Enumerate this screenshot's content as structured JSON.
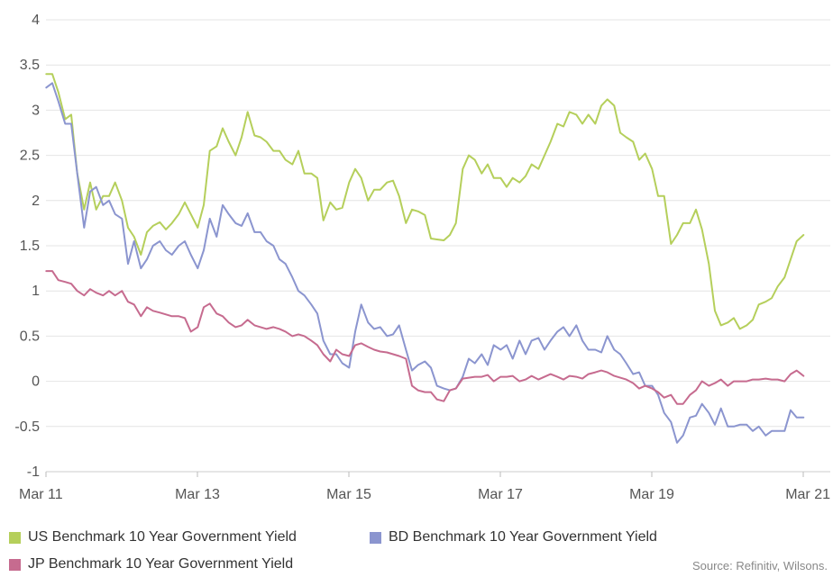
{
  "chart_data": {
    "type": "line",
    "title": "",
    "xlabel": "",
    "ylabel": "",
    "ylim": [
      -1,
      4
    ],
    "yticks": [
      -1,
      -0.5,
      0,
      0.5,
      1,
      1.5,
      2,
      2.5,
      3,
      3.5,
      4
    ],
    "ytick_labels": [
      "-1",
      "-0.5",
      "0",
      "0.5",
      "1",
      "1.5",
      "2",
      "2.5",
      "3",
      "3.5",
      "4"
    ],
    "xlim": [
      2011.167,
      2021.167
    ],
    "xticks": [
      2011.167,
      2013.167,
      2015.167,
      2017.167,
      2019.167,
      2021.167
    ],
    "xtick_labels": [
      "Mar 11",
      "Mar 13",
      "Mar 15",
      "Mar 17",
      "Mar 19",
      "Mar 21"
    ],
    "grid": true,
    "legend_position": "bottom",
    "series": [
      {
        "name": "US Benchmark 10 Year Government Yield",
        "color": "#b5cf5b",
        "x": [
          2011.17,
          2011.25,
          2011.33,
          2011.42,
          2011.5,
          2011.58,
          2011.67,
          2011.75,
          2011.83,
          2011.92,
          2012.0,
          2012.08,
          2012.17,
          2012.25,
          2012.33,
          2012.42,
          2012.5,
          2012.58,
          2012.67,
          2012.75,
          2012.83,
          2012.92,
          2013.0,
          2013.08,
          2013.17,
          2013.25,
          2013.33,
          2013.42,
          2013.5,
          2013.58,
          2013.67,
          2013.75,
          2013.83,
          2013.92,
          2014.0,
          2014.08,
          2014.17,
          2014.25,
          2014.33,
          2014.42,
          2014.5,
          2014.58,
          2014.67,
          2014.75,
          2014.83,
          2014.92,
          2015.0,
          2015.08,
          2015.17,
          2015.25,
          2015.33,
          2015.42,
          2015.5,
          2015.58,
          2015.67,
          2015.75,
          2015.83,
          2015.92,
          2016.0,
          2016.08,
          2016.17,
          2016.25,
          2016.33,
          2016.42,
          2016.5,
          2016.58,
          2016.67,
          2016.75,
          2016.83,
          2016.92,
          2017.0,
          2017.08,
          2017.17,
          2017.25,
          2017.33,
          2017.42,
          2017.5,
          2017.58,
          2017.67,
          2017.75,
          2017.83,
          2017.92,
          2018.0,
          2018.08,
          2018.17,
          2018.25,
          2018.33,
          2018.42,
          2018.5,
          2018.58,
          2018.67,
          2018.75,
          2018.83,
          2018.92,
          2019.0,
          2019.08,
          2019.17,
          2019.25,
          2019.33,
          2019.42,
          2019.5,
          2019.58,
          2019.67,
          2019.75,
          2019.83,
          2019.92,
          2020.0,
          2020.08,
          2020.17,
          2020.25,
          2020.33,
          2020.42,
          2020.5,
          2020.58,
          2020.67,
          2020.75,
          2020.83,
          2020.92,
          2021.0,
          2021.08,
          2021.17
        ],
        "values": [
          3.4,
          3.4,
          3.2,
          2.9,
          2.95,
          2.3,
          1.9,
          2.2,
          1.9,
          2.05,
          2.05,
          2.2,
          2.0,
          1.7,
          1.6,
          1.4,
          1.65,
          1.72,
          1.76,
          1.68,
          1.75,
          1.85,
          1.98,
          1.85,
          1.7,
          1.95,
          2.55,
          2.6,
          2.8,
          2.65,
          2.5,
          2.7,
          2.98,
          2.72,
          2.7,
          2.65,
          2.55,
          2.55,
          2.45,
          2.4,
          2.55,
          2.3,
          2.3,
          2.25,
          1.78,
          1.98,
          1.9,
          1.92,
          2.2,
          2.35,
          2.25,
          2.0,
          2.12,
          2.12,
          2.2,
          2.22,
          2.05,
          1.75,
          1.9,
          1.88,
          1.84,
          1.58,
          1.57,
          1.56,
          1.62,
          1.75,
          2.35,
          2.5,
          2.45,
          2.3,
          2.4,
          2.25,
          2.25,
          2.15,
          2.25,
          2.2,
          2.27,
          2.4,
          2.35,
          2.5,
          2.65,
          2.85,
          2.82,
          2.98,
          2.95,
          2.85,
          2.95,
          2.85,
          3.05,
          3.12,
          3.05,
          2.75,
          2.7,
          2.65,
          2.45,
          2.52,
          2.35,
          2.05,
          2.05,
          1.52,
          1.62,
          1.75,
          1.75,
          1.9,
          1.68,
          1.3,
          0.78,
          0.62,
          0.65,
          0.7,
          0.58,
          0.62,
          0.68,
          0.85,
          0.88,
          0.92,
          1.05,
          1.15,
          1.35,
          1.55,
          1.62
        ]
      },
      {
        "name": "BD Benchmark 10 Year Government Yield",
        "color": "#8b95cf",
        "x": [
          2011.17,
          2011.25,
          2011.33,
          2011.42,
          2011.5,
          2011.58,
          2011.67,
          2011.75,
          2011.83,
          2011.92,
          2012.0,
          2012.08,
          2012.17,
          2012.25,
          2012.33,
          2012.42,
          2012.5,
          2012.58,
          2012.67,
          2012.75,
          2012.83,
          2012.92,
          2013.0,
          2013.08,
          2013.17,
          2013.25,
          2013.33,
          2013.42,
          2013.5,
          2013.58,
          2013.67,
          2013.75,
          2013.83,
          2013.92,
          2014.0,
          2014.08,
          2014.17,
          2014.25,
          2014.33,
          2014.42,
          2014.5,
          2014.58,
          2014.67,
          2014.75,
          2014.83,
          2014.92,
          2015.0,
          2015.08,
          2015.17,
          2015.25,
          2015.33,
          2015.42,
          2015.5,
          2015.58,
          2015.67,
          2015.75,
          2015.83,
          2015.92,
          2016.0,
          2016.08,
          2016.17,
          2016.25,
          2016.33,
          2016.42,
          2016.5,
          2016.58,
          2016.67,
          2016.75,
          2016.83,
          2016.92,
          2017.0,
          2017.08,
          2017.17,
          2017.25,
          2017.33,
          2017.42,
          2017.5,
          2017.58,
          2017.67,
          2017.75,
          2017.83,
          2017.92,
          2018.0,
          2018.08,
          2018.17,
          2018.25,
          2018.33,
          2018.42,
          2018.5,
          2018.58,
          2018.67,
          2018.75,
          2018.83,
          2018.92,
          2019.0,
          2019.08,
          2019.17,
          2019.25,
          2019.33,
          2019.42,
          2019.5,
          2019.58,
          2019.67,
          2019.75,
          2019.83,
          2019.92,
          2020.0,
          2020.08,
          2020.17,
          2020.25,
          2020.33,
          2020.42,
          2020.5,
          2020.58,
          2020.67,
          2020.75,
          2020.83,
          2020.92,
          2021.0,
          2021.08,
          2021.17
        ],
        "values": [
          3.25,
          3.3,
          3.1,
          2.85,
          2.85,
          2.3,
          1.7,
          2.1,
          2.15,
          1.95,
          2.0,
          1.85,
          1.8,
          1.3,
          1.55,
          1.25,
          1.35,
          1.5,
          1.55,
          1.45,
          1.4,
          1.5,
          1.55,
          1.4,
          1.25,
          1.45,
          1.8,
          1.6,
          1.95,
          1.85,
          1.75,
          1.72,
          1.86,
          1.65,
          1.65,
          1.55,
          1.5,
          1.35,
          1.3,
          1.15,
          1.0,
          0.95,
          0.85,
          0.75,
          0.45,
          0.3,
          0.3,
          0.2,
          0.15,
          0.55,
          0.85,
          0.65,
          0.58,
          0.6,
          0.5,
          0.52,
          0.62,
          0.35,
          0.12,
          0.18,
          0.22,
          0.15,
          -0.05,
          -0.08,
          -0.1,
          -0.08,
          0.05,
          0.25,
          0.2,
          0.3,
          0.18,
          0.4,
          0.35,
          0.4,
          0.25,
          0.45,
          0.3,
          0.45,
          0.48,
          0.35,
          0.45,
          0.55,
          0.6,
          0.5,
          0.62,
          0.45,
          0.35,
          0.35,
          0.32,
          0.5,
          0.35,
          0.3,
          0.2,
          0.08,
          0.1,
          -0.05,
          -0.05,
          -0.15,
          -0.35,
          -0.45,
          -0.68,
          -0.6,
          -0.4,
          -0.38,
          -0.25,
          -0.35,
          -0.48,
          -0.3,
          -0.5,
          -0.5,
          -0.48,
          -0.48,
          -0.55,
          -0.5,
          -0.6,
          -0.55,
          -0.55,
          -0.55,
          -0.32,
          -0.4,
          -0.4
        ]
      },
      {
        "name": "JP Benchmark 10 Year Government Yield",
        "color": "#c66b8f",
        "x": [
          2011.17,
          2011.25,
          2011.33,
          2011.42,
          2011.5,
          2011.58,
          2011.67,
          2011.75,
          2011.83,
          2011.92,
          2012.0,
          2012.08,
          2012.17,
          2012.25,
          2012.33,
          2012.42,
          2012.5,
          2012.58,
          2012.67,
          2012.75,
          2012.83,
          2012.92,
          2013.0,
          2013.08,
          2013.17,
          2013.25,
          2013.33,
          2013.42,
          2013.5,
          2013.58,
          2013.67,
          2013.75,
          2013.83,
          2013.92,
          2014.0,
          2014.08,
          2014.17,
          2014.25,
          2014.33,
          2014.42,
          2014.5,
          2014.58,
          2014.67,
          2014.75,
          2014.83,
          2014.92,
          2015.0,
          2015.08,
          2015.17,
          2015.25,
          2015.33,
          2015.42,
          2015.5,
          2015.58,
          2015.67,
          2015.75,
          2015.83,
          2015.92,
          2016.0,
          2016.08,
          2016.17,
          2016.25,
          2016.33,
          2016.42,
          2016.5,
          2016.58,
          2016.67,
          2016.75,
          2016.83,
          2016.92,
          2017.0,
          2017.08,
          2017.17,
          2017.25,
          2017.33,
          2017.42,
          2017.5,
          2017.58,
          2017.67,
          2017.75,
          2017.83,
          2017.92,
          2018.0,
          2018.08,
          2018.17,
          2018.25,
          2018.33,
          2018.42,
          2018.5,
          2018.58,
          2018.67,
          2018.75,
          2018.83,
          2018.92,
          2019.0,
          2019.08,
          2019.17,
          2019.25,
          2019.33,
          2019.42,
          2019.5,
          2019.58,
          2019.67,
          2019.75,
          2019.83,
          2019.92,
          2020.0,
          2020.08,
          2020.17,
          2020.25,
          2020.33,
          2020.42,
          2020.5,
          2020.58,
          2020.67,
          2020.75,
          2020.83,
          2020.92,
          2021.0,
          2021.08,
          2021.17
        ],
        "values": [
          1.22,
          1.22,
          1.12,
          1.1,
          1.08,
          1.0,
          0.95,
          1.02,
          0.98,
          0.95,
          1.0,
          0.95,
          1.0,
          0.88,
          0.85,
          0.72,
          0.82,
          0.78,
          0.76,
          0.74,
          0.72,
          0.72,
          0.7,
          0.55,
          0.6,
          0.82,
          0.86,
          0.75,
          0.72,
          0.65,
          0.6,
          0.62,
          0.68,
          0.62,
          0.6,
          0.58,
          0.6,
          0.58,
          0.55,
          0.5,
          0.52,
          0.5,
          0.45,
          0.4,
          0.3,
          0.22,
          0.35,
          0.3,
          0.28,
          0.4,
          0.42,
          0.38,
          0.35,
          0.33,
          0.32,
          0.3,
          0.28,
          0.25,
          -0.05,
          -0.1,
          -0.12,
          -0.12,
          -0.2,
          -0.22,
          -0.1,
          -0.08,
          0.03,
          0.04,
          0.05,
          0.05,
          0.07,
          0.0,
          0.05,
          0.05,
          0.06,
          0.0,
          0.02,
          0.06,
          0.02,
          0.05,
          0.08,
          0.05,
          0.02,
          0.06,
          0.05,
          0.03,
          0.08,
          0.1,
          0.12,
          0.1,
          0.06,
          0.04,
          0.02,
          -0.02,
          -0.08,
          -0.05,
          -0.08,
          -0.12,
          -0.18,
          -0.15,
          -0.25,
          -0.25,
          -0.15,
          -0.1,
          0.0,
          -0.05,
          -0.02,
          0.02,
          -0.05,
          0.0,
          0.0,
          0.0,
          0.02,
          0.02,
          0.03,
          0.02,
          0.02,
          0.0,
          0.08,
          0.12,
          0.06
        ]
      }
    ]
  },
  "source_note": "Source: Refinitiv, Wilsons."
}
